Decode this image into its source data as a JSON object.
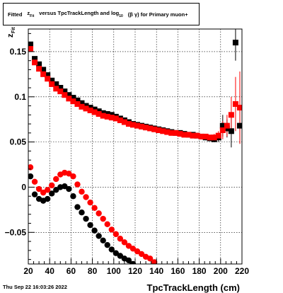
{
  "title": {
    "prefix": "Fitted",
    "z": "z",
    "z_sub": "Fit",
    "middle": "versus TpcTrackLength and log",
    "log_sub": "10",
    "suffix": "(β  γ) for Primary muon+"
  },
  "timestamp": "Thu Sep 22 16:03:26 2022",
  "colors": {
    "series_black": "#000000",
    "series_red": "#ff0000",
    "grid": "#000000"
  },
  "chart_data": {
    "type": "scatter",
    "title": "Fitted z_Fit versus TpcTrackLength and log_10(β γ) for Primary muon+",
    "xlabel": "TpcTrackLength (cm)",
    "ylabel": "z",
    "ylabel_sub": "Fit",
    "xlim": [
      20,
      220
    ],
    "ylim": [
      -0.085,
      0.175
    ],
    "xticks": [
      20,
      40,
      60,
      80,
      100,
      120,
      140,
      160,
      180,
      200,
      220
    ],
    "xtick_labels": [
      "20",
      "40",
      "60",
      "80",
      "100",
      "120",
      "140",
      "160",
      "180",
      "200",
      "220"
    ],
    "yticks": [
      -0.05,
      0,
      0.05,
      0.1,
      0.15
    ],
    "ytick_labels": [
      "−0.05",
      "0",
      "0.05",
      "0.1",
      "0.15"
    ],
    "grid": true,
    "legend": "none",
    "series": [
      {
        "marker": "square",
        "color": "#000000",
        "x": [
          22,
          26,
          30,
          34,
          38,
          42,
          46,
          50,
          54,
          58,
          62,
          66,
          70,
          74,
          78,
          82,
          86,
          90,
          94,
          98,
          102,
          106,
          110,
          114,
          118,
          122,
          126,
          130,
          134,
          138,
          142,
          146,
          150,
          154,
          158,
          162,
          166,
          170,
          174,
          178,
          182,
          186,
          190,
          194,
          198,
          202,
          206,
          210,
          214,
          218
        ],
        "y": [
          0.158,
          0.142,
          0.136,
          0.13,
          0.124,
          0.118,
          0.114,
          0.11,
          0.106,
          0.102,
          0.099,
          0.096,
          0.093,
          0.09,
          0.088,
          0.086,
          0.084,
          0.082,
          0.081,
          0.08,
          0.078,
          0.076,
          0.074,
          0.072,
          0.07,
          0.069,
          0.068,
          0.067,
          0.066,
          0.065,
          0.064,
          0.063,
          0.062,
          0.061,
          0.06,
          0.06,
          0.059,
          0.058,
          0.058,
          0.057,
          0.056,
          0.055,
          0.054,
          0.053,
          0.055,
          0.068,
          0.065,
          0.062,
          0.16,
          0.068
        ],
        "yerr": [
          0,
          0,
          0,
          0,
          0,
          0,
          0,
          0,
          0,
          0,
          0,
          0,
          0,
          0,
          0,
          0,
          0,
          0,
          0,
          0,
          0,
          0,
          0,
          0,
          0,
          0,
          0,
          0,
          0,
          0,
          0,
          0,
          0,
          0,
          0,
          0,
          0,
          0,
          0,
          0,
          0,
          0,
          0,
          0,
          0.005,
          0.012,
          0.01,
          0.018,
          0.02,
          0.02
        ]
      },
      {
        "marker": "square",
        "color": "#ff0000",
        "x": [
          22,
          26,
          30,
          34,
          38,
          42,
          46,
          50,
          54,
          58,
          62,
          66,
          70,
          74,
          78,
          82,
          86,
          90,
          94,
          98,
          102,
          106,
          110,
          114,
          118,
          122,
          126,
          130,
          134,
          138,
          142,
          146,
          150,
          154,
          158,
          162,
          166,
          170,
          174,
          178,
          182,
          186,
          190,
          194,
          198,
          202,
          206,
          210,
          214,
          218
        ],
        "y": [
          0.153,
          0.138,
          0.131,
          0.125,
          0.12,
          0.114,
          0.109,
          0.106,
          0.102,
          0.098,
          0.095,
          0.092,
          0.089,
          0.087,
          0.085,
          0.083,
          0.081,
          0.079,
          0.078,
          0.077,
          0.076,
          0.074,
          0.072,
          0.07,
          0.069,
          0.068,
          0.067,
          0.066,
          0.065,
          0.064,
          0.063,
          0.062,
          0.061,
          0.06,
          0.06,
          0.059,
          0.058,
          0.058,
          0.057,
          0.057,
          0.056,
          0.056,
          0.055,
          0.055,
          0.057,
          0.063,
          0.068,
          0.08,
          0.092,
          0.088
        ],
        "yerr": [
          0,
          0,
          0,
          0,
          0,
          0,
          0,
          0,
          0,
          0,
          0,
          0,
          0,
          0,
          0,
          0,
          0,
          0,
          0,
          0,
          0,
          0,
          0,
          0,
          0,
          0,
          0,
          0,
          0,
          0,
          0,
          0,
          0,
          0,
          0,
          0,
          0,
          0,
          0,
          0,
          0,
          0,
          0,
          0.004,
          0.005,
          0.01,
          0.012,
          0.02,
          0.03,
          0.04
        ]
      },
      {
        "marker": "circle",
        "color": "#000000",
        "x": [
          22,
          26,
          30,
          34,
          38,
          42,
          46,
          50,
          54,
          58,
          62,
          66,
          70,
          74,
          78,
          82,
          86,
          90,
          94,
          98,
          102,
          106,
          110,
          114,
          118
        ],
        "y": [
          0.012,
          -0.008,
          -0.013,
          -0.015,
          -0.013,
          -0.007,
          -0.003,
          0.0,
          0.001,
          -0.002,
          -0.01,
          -0.022,
          -0.028,
          -0.035,
          -0.042,
          -0.048,
          -0.054,
          -0.059,
          -0.064,
          -0.069,
          -0.073,
          -0.076,
          -0.079,
          -0.081,
          -0.085
        ]
      },
      {
        "marker": "circle",
        "color": "#ff0000",
        "x": [
          22,
          26,
          30,
          34,
          38,
          42,
          46,
          50,
          54,
          58,
          62,
          66,
          70,
          74,
          78,
          82,
          86,
          90,
          94,
          98,
          102,
          106,
          110,
          114,
          118,
          122,
          126,
          130,
          134,
          138
        ],
        "y": [
          0.022,
          0.006,
          -0.002,
          -0.006,
          -0.003,
          0.002,
          0.009,
          0.014,
          0.016,
          0.015,
          0.012,
          0.003,
          -0.005,
          -0.011,
          -0.017,
          -0.023,
          -0.029,
          -0.035,
          -0.041,
          -0.047,
          -0.052,
          -0.057,
          -0.061,
          -0.065,
          -0.068,
          -0.071,
          -0.074,
          -0.077,
          -0.079,
          -0.083
        ]
      }
    ]
  }
}
